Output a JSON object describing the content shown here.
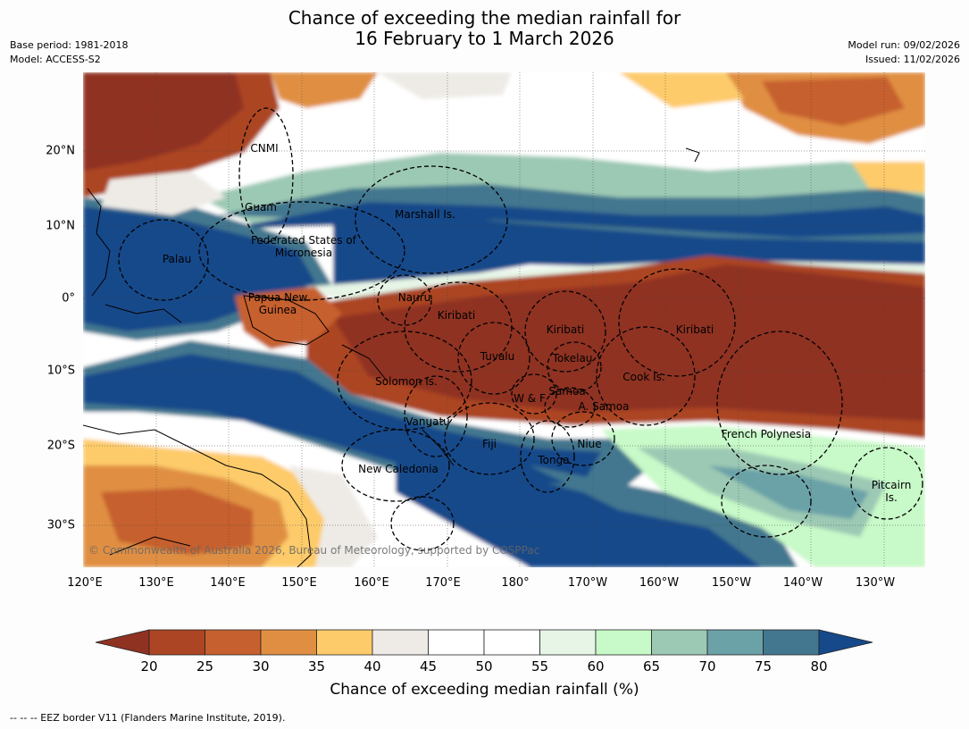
{
  "title": {
    "line1": "Chance of exceeding the median rainfall for",
    "line2": "16 February to 1 March 2026"
  },
  "meta": {
    "base_period": "Base period: 1981-2018",
    "model": "Model: ACCESS-S2",
    "model_run": "Model run: 09/02/2026",
    "issued": "Issued: 11/02/2026"
  },
  "map": {
    "copyright": "© Commonwealth of Australia 2026, Bureau of Meteorology, supported by COSPPac",
    "regions": [
      "CNMI",
      "Guam",
      "Marshall Is.",
      "Federated States of Micronesia",
      "Palau",
      "Papua New Guinea",
      "Nauru",
      "Kiribati",
      "Kiribati",
      "Kiribati",
      "Tuvalu",
      "Tokelau",
      "Solomon Is.",
      "Cook Is.",
      "Samoa",
      "W & F",
      "A. Samoa",
      "Vanuatu",
      "Fiji",
      "Niue",
      "French Polynesia",
      "Tonga",
      "New Caledonia",
      "Pitcairn Is."
    ],
    "lat_labels": [
      "20°N",
      "10°N",
      "0°",
      "10°S",
      "20°S",
      "30°S"
    ],
    "lon_labels": [
      "120°E",
      "130°E",
      "140°E",
      "150°E",
      "160°E",
      "170°E",
      "180°",
      "170°W",
      "160°W",
      "150°W",
      "140°W",
      "130°W"
    ]
  },
  "colorbar": {
    "ticks": [
      "20",
      "25",
      "30",
      "35",
      "40",
      "45",
      "50",
      "55",
      "60",
      "65",
      "70",
      "75",
      "80"
    ],
    "colors": [
      "#8f3222",
      "#ac4523",
      "#c6612f",
      "#e08f42",
      "#fdcb6a",
      "#eeebe6",
      "#ffffff",
      "#ffffff",
      "#e6f5e6",
      "#c8f9c8",
      "#9cc9b4",
      "#6ba2a8",
      "#43778f",
      "#16498a"
    ],
    "title": "Chance of exceeding median rainfall (%)"
  },
  "footnote": "--  --  -- EEZ border V11 (Flanders Marine Institute, 2019)."
}
